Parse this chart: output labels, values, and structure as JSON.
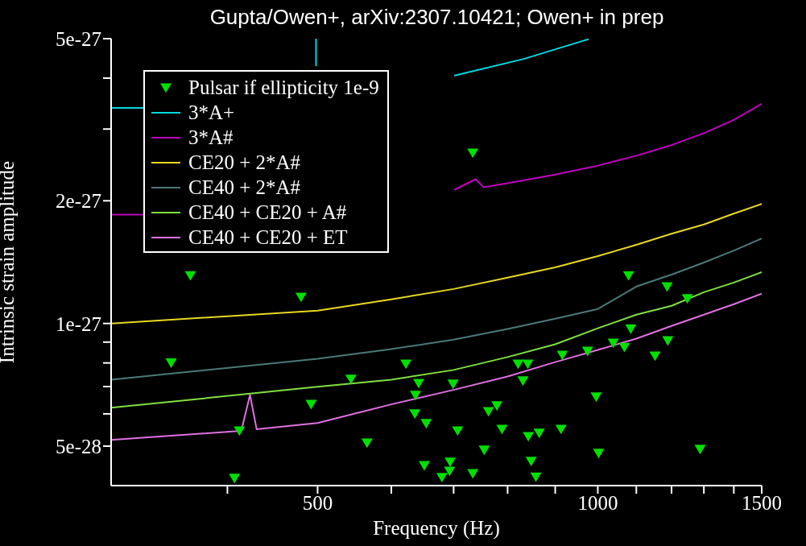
{
  "chart_data": {
    "type": "line",
    "title": "Gupta/Owen+, arXiv:2307.10421; Owen+ in prep",
    "xlabel": "Frequency (Hz)",
    "ylabel": "Intrinsic strain amplitude",
    "log": "xy",
    "legend": "top left",
    "grid": false,
    "xlim": [
      300,
      1500
    ],
    "ylim": [
      4e-28,
      5e-27
    ],
    "xticks": [
      {
        "value": 400,
        "label": null
      },
      500,
      {
        "value": 600,
        "label": null
      },
      {
        "value": 700,
        "label": null
      },
      {
        "value": 800,
        "label": null
      },
      {
        "value": 900,
        "label": null
      },
      1000,
      {
        "value": 1100,
        "label": null
      },
      {
        "value": 1200,
        "label": null
      },
      {
        "value": 1300,
        "label": null
      },
      {
        "value": 1400,
        "label": null
      },
      1500
    ],
    "yticks": [
      {
        "value": 5e-28,
        "label": "5e-28"
      },
      {
        "value": 6e-28,
        "label": null
      },
      {
        "value": 7e-28,
        "label": null
      },
      {
        "value": 8e-28,
        "label": null
      },
      {
        "value": 9e-28,
        "label": null
      },
      {
        "value": 1e-27,
        "label": "1e-27"
      },
      {
        "value": 2e-27,
        "label": "2e-27"
      },
      {
        "value": 3e-27,
        "label": null
      },
      {
        "value": 4e-27,
        "label": null
      },
      {
        "value": 5e-27,
        "label": "5e-27"
      }
    ],
    "series": [
      {
        "type": "scatter",
        "marker": "triangle",
        "name": "Pulsar if ellipticity 1e-9",
        "color": "#00e000",
        "x": [
          734,
          365,
          480,
          348,
          543,
          492,
          412,
          565,
          407,
          622,
          642,
          637,
          636,
          654,
          699,
          707,
          755,
          763,
          779,
          789,
          821,
          841,
          831,
          842,
          865,
          848,
          858,
          651,
          694,
          693,
          680,
          734,
          913,
          916,
          975,
          996,
          1002,
          1039,
          1068,
          1085,
          1079,
          1152,
          1189,
          1187,
          1248,
          1288
        ],
        "values": [
          2.62e-27,
          1.31e-27,
          1.16e-27,
          8e-28,
          7.3e-28,
          6.33e-28,
          5.45e-28,
          5.09e-28,
          4.17e-28,
          7.95e-28,
          7.13e-28,
          6.66e-28,
          6e-28,
          5.68e-28,
          7.1e-28,
          5.45e-28,
          4.89e-28,
          6.08e-28,
          6.28e-28,
          5.5e-28,
          7.95e-28,
          7.95e-28,
          7.23e-28,
          5.28e-28,
          5.38e-28,
          4.59e-28,
          4.2e-28,
          4.48e-28,
          4.57e-28,
          4.34e-28,
          4.19e-28,
          4.28e-28,
          5.5e-28,
          8.36e-28,
          8.55e-28,
          6.6e-28,
          4.8e-28,
          8.95e-28,
          8.74e-28,
          9.7e-28,
          1.31e-27,
          8.32e-28,
          9.07e-28,
          1.23e-27,
          1.15e-27,
          4.91e-28
        ]
      },
      {
        "name": "3*A+",
        "color": "#00d8e0",
        "x": [
          300,
          325,
          400,
          498,
          498,
          530,
          702,
          833,
          976
        ],
        "values": [
          3.38e-27,
          3.38e-27,
          null,
          4.3e-27,
          5e-27,
          null,
          4.06e-27,
          4.46e-27,
          4.98e-27
        ]
      },
      {
        "name": "3*A#",
        "color": "#c000c0",
        "x": [
          300,
          325,
          500,
          702,
          739,
          754,
          800,
          900,
          1000,
          1100,
          1200,
          1300,
          1400,
          1500
        ],
        "values": [
          1.85e-27,
          1.85e-27,
          null,
          2.13e-27,
          2.26e-27,
          2.16e-27,
          2.21e-27,
          2.32e-27,
          2.44e-27,
          2.58e-27,
          2.74e-27,
          2.93e-27,
          3.16e-27,
          3.46e-27
        ]
      },
      {
        "name": "CE20 + 2*A#",
        "color": "#e8d820",
        "x": [
          300,
          500,
          600,
          700,
          800,
          900,
          1000,
          1100,
          1200,
          1300,
          1400,
          1500
        ],
        "values": [
          1e-27,
          1.075e-27,
          1.146e-27,
          1.215e-27,
          1.295e-27,
          1.373e-27,
          1.463e-27,
          1.56e-27,
          1.66e-27,
          1.75e-27,
          1.86e-27,
          1.965e-27
        ]
      },
      {
        "name": "CE40 + 2*A#",
        "color": "#4a7a78",
        "x": [
          300,
          500,
          600,
          700,
          800,
          900,
          1000,
          1100,
          1200,
          1300,
          1400,
          1500
        ],
        "values": [
          7.28e-28,
          8.19e-28,
          8.65e-28,
          9.13e-28,
          9.69e-28,
          1.027e-27,
          1.085e-27,
          1.232e-27,
          1.318e-27,
          1.411e-27,
          1.51e-27,
          1.617e-27
        ]
      },
      {
        "name": "CE40 + CE20 + A#",
        "color": "#80e040",
        "x": [
          300,
          500,
          600,
          700,
          800,
          900,
          1000,
          1100,
          1200,
          1300,
          1400,
          1500
        ],
        "values": [
          6.21e-28,
          6.99e-28,
          7.28e-28,
          7.69e-28,
          8.27e-28,
          8.89e-28,
          9.73e-28,
          1.051e-27,
          1.105e-27,
          1.193e-27,
          1.26e-27,
          1.336e-27
        ]
      },
      {
        "name": "CE40 + CE20 + ET",
        "color": "#e070e0",
        "x": [
          300,
          414,
          423,
          430,
          500,
          600,
          700,
          800,
          900,
          1000,
          1100,
          1200,
          1300,
          1400,
          1500
        ],
        "values": [
          5.18e-28,
          5.45e-28,
          6.68e-28,
          5.5e-28,
          5.7e-28,
          6.33e-28,
          6.87e-28,
          7.41e-28,
          8.04e-28,
          8.61e-28,
          9.18e-28,
          9.86e-28,
          1.051e-27,
          1.115e-27,
          1.183e-27
        ]
      }
    ]
  }
}
